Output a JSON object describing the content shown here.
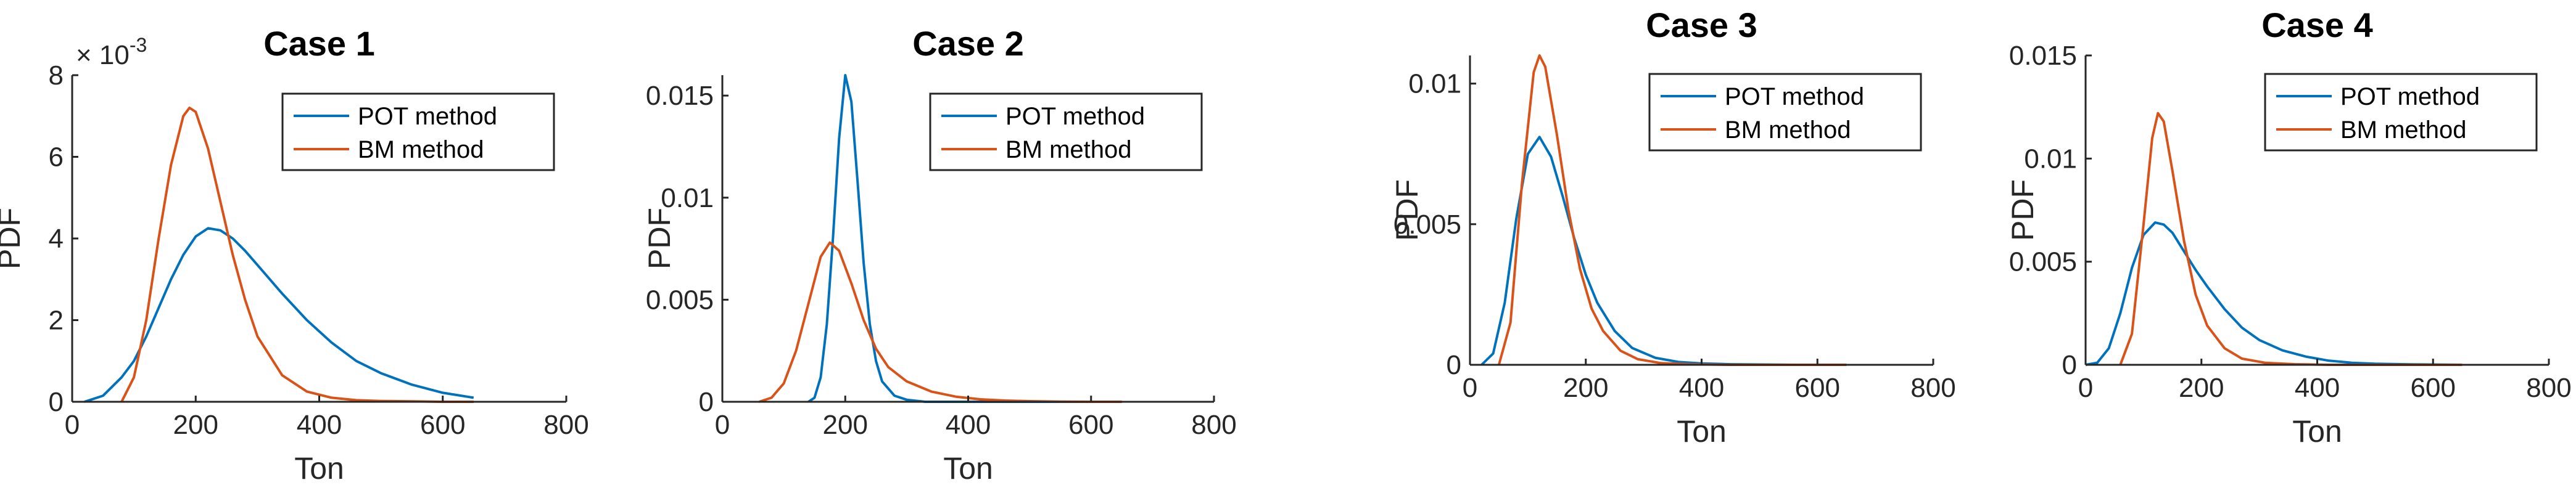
{
  "chart_data": [
    {
      "type": "line",
      "title": "Case 1",
      "xlabel": "Ton",
      "ylabel": "PDF",
      "xlim": [
        0,
        800
      ],
      "ylim": [
        0,
        8
      ],
      "xticks": [
        0,
        200,
        400,
        600,
        800
      ],
      "yticks": [
        0,
        2,
        4,
        6,
        8
      ],
      "xtick_labels": [
        "0",
        "200",
        "400",
        "600",
        "800"
      ],
      "ytick_labels": [
        "0",
        "2",
        "4",
        "6",
        "8"
      ],
      "y_exponent": {
        "base": "× 10",
        "power": "-3"
      },
      "legend": {
        "placement": "top-right",
        "entries": [
          "POT method",
          "BM method"
        ]
      },
      "series": [
        {
          "name": "POT method",
          "color": "#0072BD",
          "x": [
            20,
            50,
            80,
            100,
            120,
            140,
            160,
            180,
            200,
            220,
            240,
            260,
            280,
            300,
            340,
            380,
            420,
            460,
            500,
            550,
            600,
            650
          ],
          "y": [
            0,
            0.15,
            0.6,
            1.0,
            1.6,
            2.3,
            3.0,
            3.6,
            4.05,
            4.25,
            4.2,
            4.0,
            3.7,
            3.35,
            2.65,
            2.0,
            1.45,
            1.0,
            0.7,
            0.42,
            0.22,
            0.1
          ]
        },
        {
          "name": "BM method",
          "color": "#D95319",
          "x": [
            80,
            100,
            120,
            140,
            160,
            180,
            190,
            200,
            220,
            240,
            260,
            280,
            300,
            340,
            380,
            420,
            460,
            500,
            550,
            600,
            650
          ],
          "y": [
            0,
            0.6,
            2.0,
            4.0,
            5.8,
            7.0,
            7.2,
            7.1,
            6.2,
            4.9,
            3.6,
            2.5,
            1.6,
            0.65,
            0.25,
            0.1,
            0.04,
            0.02,
            0.01,
            0,
            0
          ]
        }
      ]
    },
    {
      "type": "line",
      "title": "Case 2",
      "xlabel": "Ton",
      "ylabel": "PDF",
      "xlim": [
        0,
        800
      ],
      "ylim": [
        0,
        0.016
      ],
      "xticks": [
        0,
        200,
        400,
        600,
        800
      ],
      "yticks": [
        0,
        0.005,
        0.01,
        0.015
      ],
      "xtick_labels": [
        "0",
        "200",
        "400",
        "600",
        "800"
      ],
      "ytick_labels": [
        "0",
        "0.005",
        "0.01",
        "0.015"
      ],
      "legend": {
        "placement": "top-right",
        "entries": [
          "POT method",
          "BM method"
        ]
      },
      "series": [
        {
          "name": "POT method",
          "color": "#0072BD",
          "x": [
            140,
            150,
            160,
            170,
            180,
            190,
            200,
            210,
            220,
            230,
            240,
            250,
            260,
            280,
            300,
            330,
            380,
            450,
            550,
            650
          ],
          "y": [
            0,
            0.0002,
            0.0012,
            0.0038,
            0.008,
            0.0129,
            0.016,
            0.0147,
            0.0108,
            0.0068,
            0.0038,
            0.002,
            0.001,
            0.0003,
            0.0001,
            0,
            0,
            0,
            0,
            0
          ]
        },
        {
          "name": "BM method",
          "color": "#D95319",
          "x": [
            60,
            80,
            100,
            120,
            140,
            160,
            175,
            190,
            210,
            230,
            250,
            270,
            300,
            340,
            380,
            420,
            460,
            500,
            550,
            600,
            650
          ],
          "y": [
            0,
            0.0002,
            0.0009,
            0.0025,
            0.0048,
            0.0071,
            0.0078,
            0.0074,
            0.0058,
            0.004,
            0.0026,
            0.0017,
            0.001,
            0.0005,
            0.00025,
            0.00012,
            6e-05,
            3e-05,
            1e-05,
            0,
            0
          ]
        }
      ]
    },
    {
      "type": "line",
      "title": "Case 3",
      "xlabel": "Ton",
      "ylabel": "PDF",
      "xlim": [
        0,
        800
      ],
      "ylim": [
        0,
        0.011
      ],
      "xticks": [
        0,
        200,
        400,
        600,
        800
      ],
      "yticks": [
        0,
        0.005,
        0.01
      ],
      "xtick_labels": [
        "0",
        "200",
        "400",
        "600",
        "800"
      ],
      "ytick_labels": [
        "0",
        "0.005",
        "0.01"
      ],
      "legend": {
        "placement": "top-right",
        "entries": [
          "POT method",
          "BM method"
        ]
      },
      "series": [
        {
          "name": "POT method",
          "color": "#0072BD",
          "x": [
            20,
            40,
            60,
            80,
            100,
            120,
            140,
            160,
            180,
            200,
            220,
            250,
            280,
            320,
            360,
            400,
            450,
            500,
            560,
            650
          ],
          "y": [
            0,
            0.0004,
            0.0022,
            0.0052,
            0.0075,
            0.0081,
            0.0074,
            0.006,
            0.0045,
            0.0032,
            0.0022,
            0.0012,
            0.0006,
            0.00025,
            0.0001,
            5e-05,
            2e-05,
            1e-05,
            0,
            0
          ]
        },
        {
          "name": "BM method",
          "color": "#D95319",
          "x": [
            50,
            70,
            90,
            110,
            120,
            130,
            150,
            170,
            190,
            210,
            230,
            260,
            290,
            330,
            380,
            450,
            550,
            650
          ],
          "y": [
            0,
            0.0015,
            0.0065,
            0.0104,
            0.0111,
            0.0106,
            0.0082,
            0.0055,
            0.0034,
            0.002,
            0.0012,
            0.0005,
            0.0002,
            6e-05,
            2e-05,
            0,
            0,
            0
          ]
        }
      ]
    },
    {
      "type": "line",
      "title": "Case 4",
      "xlabel": "Ton",
      "ylabel": "PDF",
      "xlim": [
        0,
        800
      ],
      "ylim": [
        0,
        0.015
      ],
      "xticks": [
        0,
        200,
        400,
        600,
        800
      ],
      "yticks": [
        0,
        0.005,
        0.01,
        0.015
      ],
      "xtick_labels": [
        "0",
        "200",
        "400",
        "600",
        "800"
      ],
      "ytick_labels": [
        "0",
        "0.005",
        "0.01",
        "0.015"
      ],
      "legend": {
        "placement": "top-right",
        "entries": [
          "POT method",
          "BM method"
        ]
      },
      "series": [
        {
          "name": "POT method",
          "color": "#0072BD",
          "x": [
            0,
            20,
            40,
            60,
            80,
            100,
            120,
            135,
            150,
            170,
            190,
            210,
            240,
            270,
            300,
            340,
            380,
            420,
            460,
            500,
            560,
            650
          ],
          "y": [
            0,
            0.0001,
            0.0008,
            0.0025,
            0.0047,
            0.0063,
            0.0069,
            0.0068,
            0.0064,
            0.0055,
            0.0046,
            0.0038,
            0.0027,
            0.0018,
            0.0012,
            0.0007,
            0.0004,
            0.0002,
            0.0001,
            5e-05,
            2e-05,
            0
          ]
        },
        {
          "name": "BM method",
          "color": "#D95319",
          "x": [
            60,
            80,
            100,
            115,
            125,
            135,
            150,
            170,
            190,
            210,
            240,
            270,
            310,
            360,
            420,
            500,
            650
          ],
          "y": [
            0,
            0.0015,
            0.0068,
            0.011,
            0.0122,
            0.0118,
            0.0094,
            0.006,
            0.0034,
            0.0019,
            0.0008,
            0.0003,
            0.0001,
            3e-05,
            0,
            0,
            0
          ]
        }
      ]
    }
  ]
}
